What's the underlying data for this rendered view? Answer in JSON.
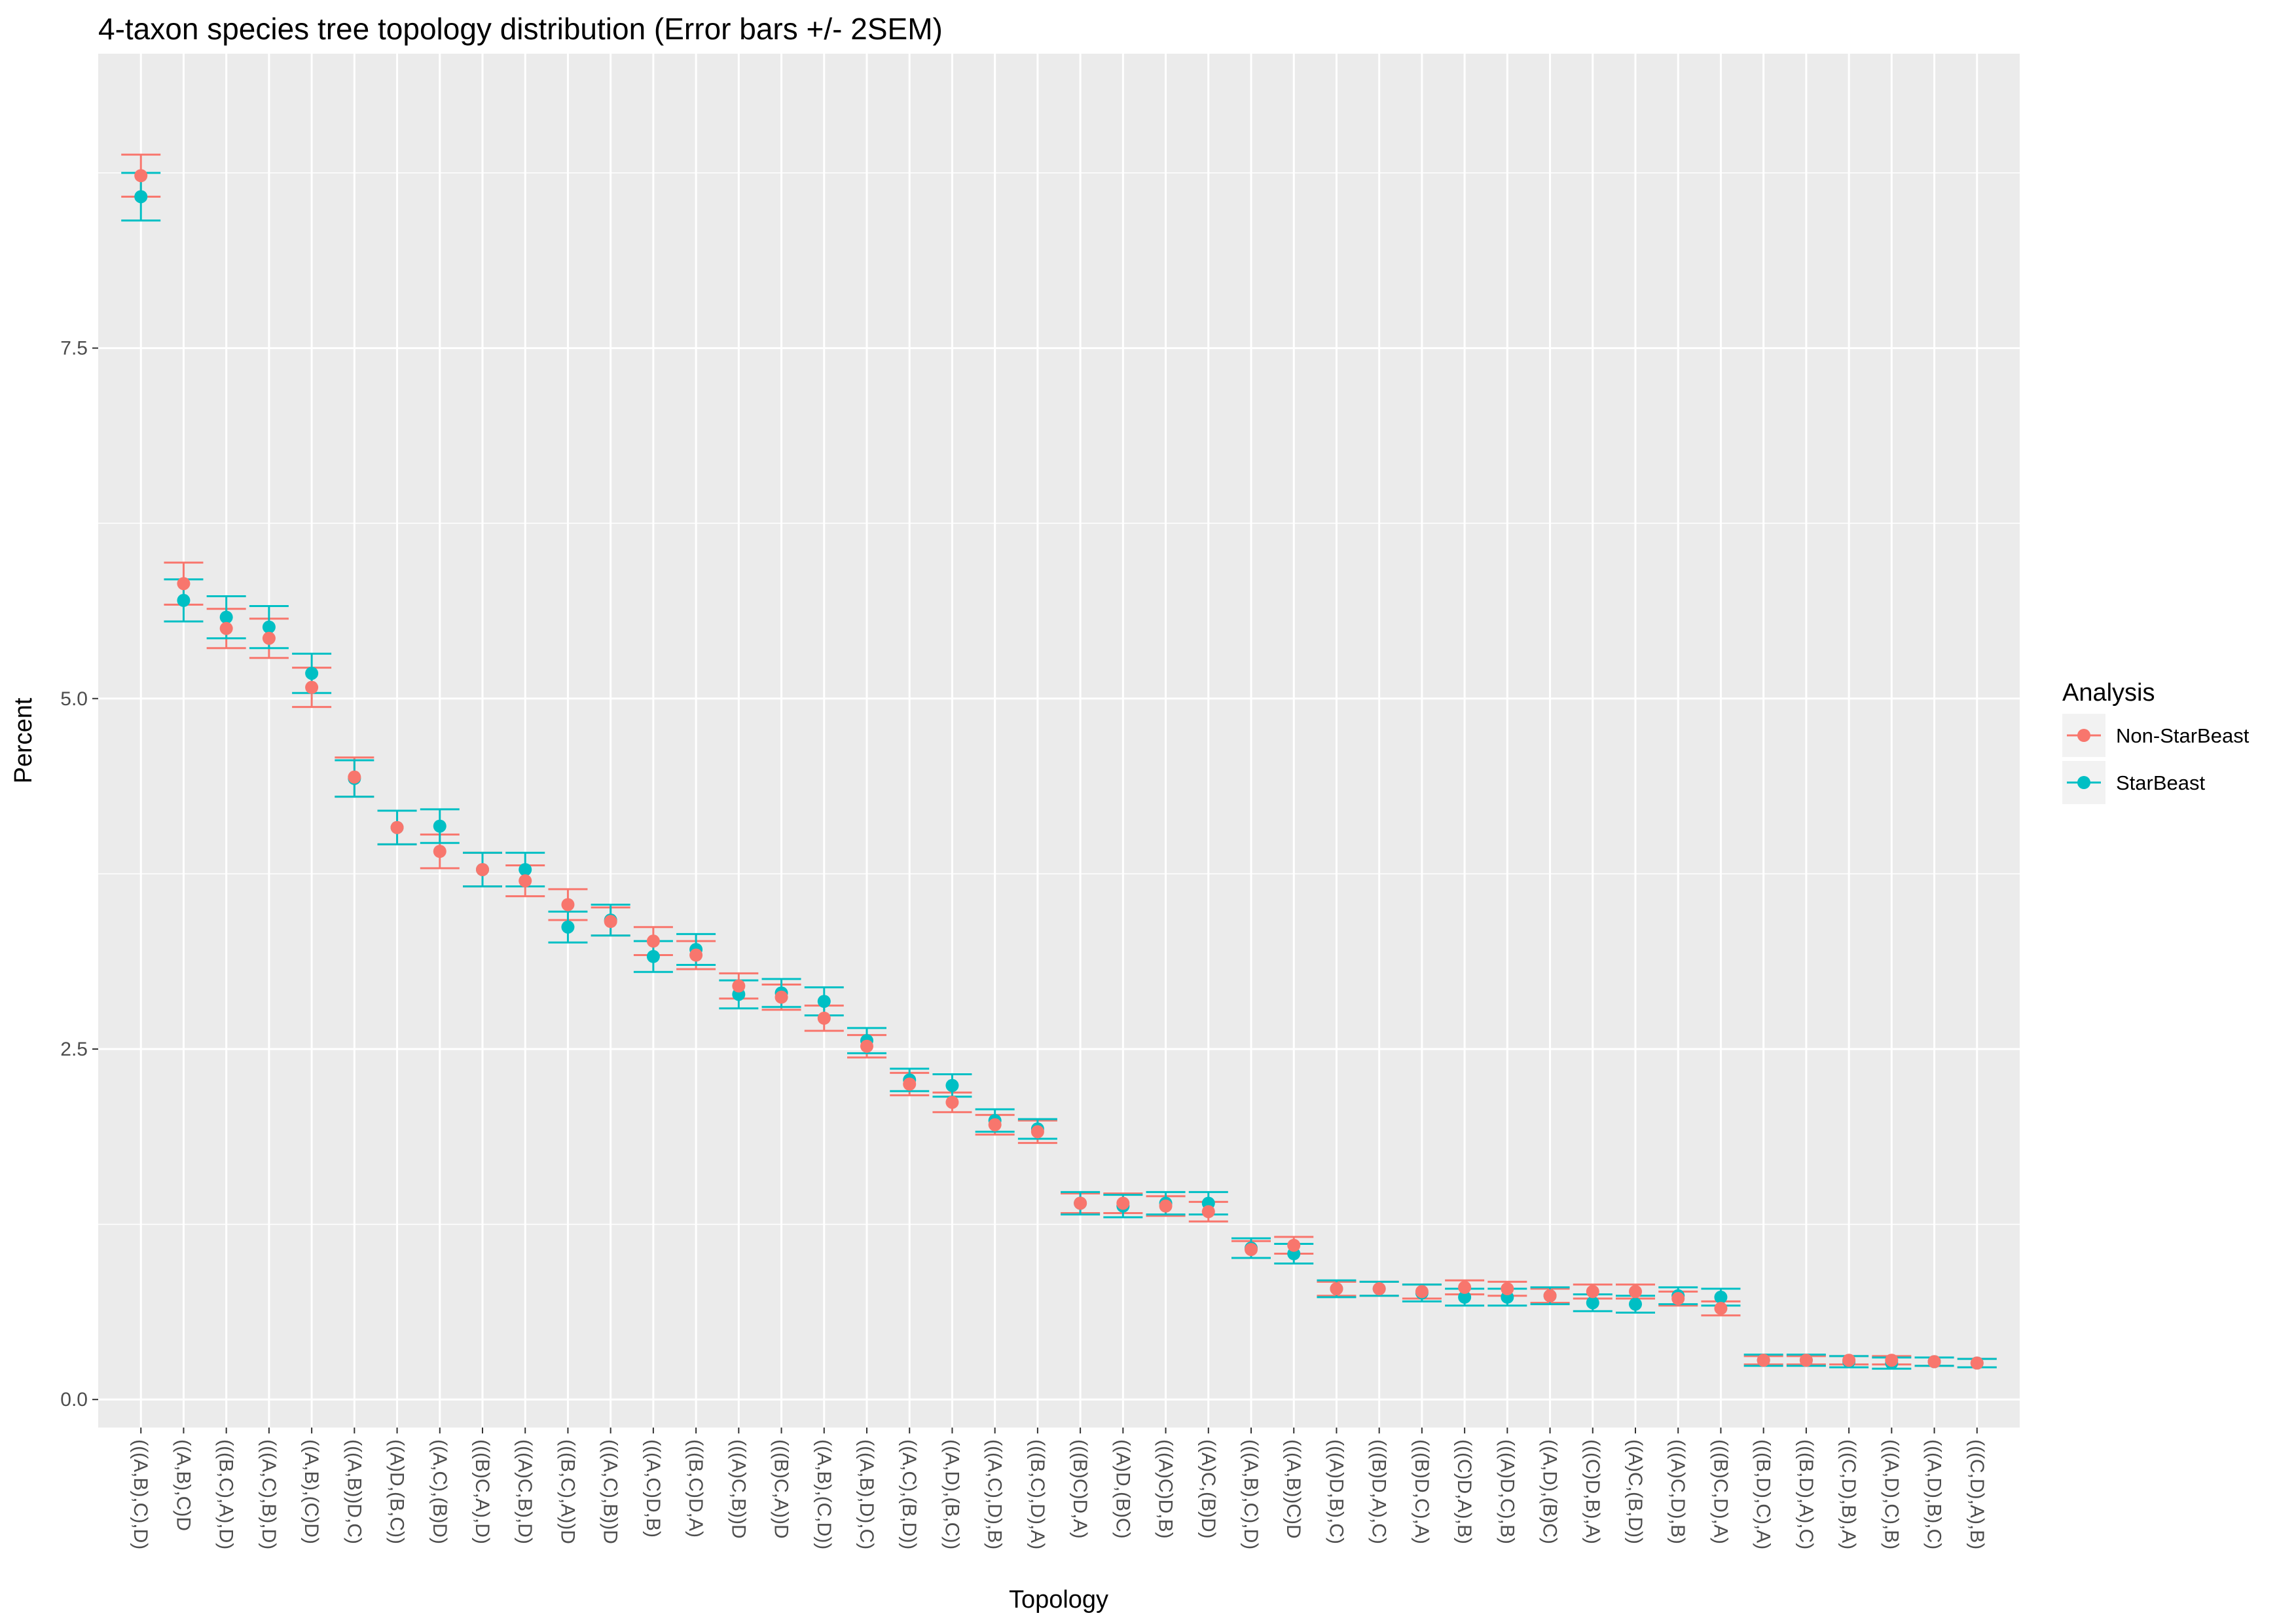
{
  "chart_data": {
    "type": "scatter",
    "title": "4-taxon species tree topology distribution (Error bars +/- 2SEM)",
    "xlabel": "Topology",
    "ylabel": "Percent",
    "ylim": [
      -0.2,
      9.6
    ],
    "yticks": [
      0.0,
      2.5,
      5.0,
      7.5
    ],
    "ytick_labels": [
      "0.0",
      "2.5",
      "5.0",
      "7.5"
    ],
    "grid": true,
    "legend_position": "right",
    "legend_title": "Analysis",
    "categories": [
      "(((A,B),C),D)",
      "((A,B),C)D",
      "(((B,C),A),D)",
      "(((A,C),B),D)",
      "((A,B),(C)D)",
      "(((A,B))D,C)",
      "((A)D,(B,C))",
      "((A,C),(B)D)",
      "(((B)C,A),D)",
      "(((A)C,B),D)",
      "(((B,C),A))D",
      "(((A,C),B))D",
      "(((A,C)D,B)",
      "(((B,C)D,A)",
      "(((A)C,B))D",
      "(((B)C,A))D",
      "((A,B),(C,D))",
      "(((A,B),D),C)",
      "((A,C),(B,D))",
      "((A,D),(B,C))",
      "(((A,C),D),B)",
      "(((B,C),D),A)",
      "(((B)C)D,A)",
      "((A)D,(B)C)",
      "(((A)C)D,B)",
      "((A)C,(B)D)",
      "(((A,B),C),D)",
      "(((A,B))C)D",
      "(((A)D,B),C)",
      "(((B)D,A),C)",
      "(((B)D,C),A)",
      "(((C)D,A),B)",
      "(((A)D,C),B)",
      "((A,D),(B)C)",
      "(((C)D,B),A)",
      "((A)C,(B,D))",
      "(((A)C,D),B)",
      "(((B)C,D),A)",
      "(((B,D),C),A)",
      "(((B,D),A),C)",
      "(((C,D),B),A)",
      "(((A,D),C),B)",
      "(((A,D),B),C)",
      "(((C,D),A),B)"
    ],
    "series": [
      {
        "name": "Non-StarBeast",
        "color": "#F8766D",
        "values": [
          8.73,
          5.82,
          5.5,
          5.43,
          5.08,
          4.44,
          4.08,
          3.91,
          3.78,
          3.7,
          3.53,
          3.41,
          3.27,
          3.17,
          2.95,
          2.87,
          2.72,
          2.52,
          2.25,
          2.12,
          1.96,
          1.91,
          1.4,
          1.4,
          1.38,
          1.34,
          1.07,
          1.1,
          0.79,
          0.79,
          0.77,
          0.8,
          0.79,
          0.74,
          0.77,
          0.77,
          0.72,
          0.65,
          0.28,
          0.28,
          0.28,
          0.28,
          0.27,
          0.26
        ],
        "err": [
          0.15,
          0.15,
          0.14,
          0.14,
          0.14,
          0.14,
          0.12,
          0.12,
          0.12,
          0.11,
          0.11,
          0.1,
          0.1,
          0.1,
          0.09,
          0.09,
          0.09,
          0.08,
          0.08,
          0.07,
          0.07,
          0.08,
          0.07,
          0.07,
          0.07,
          0.07,
          0.06,
          0.06,
          0.05,
          0.05,
          0.05,
          0.05,
          0.05,
          0.05,
          0.05,
          0.05,
          0.05,
          0.05,
          0.03,
          0.03,
          0.03,
          0.03,
          0.03,
          0.03
        ]
      },
      {
        "name": "StarBeast",
        "color": "#00BFC4",
        "values": [
          8.58,
          5.7,
          5.58,
          5.51,
          5.18,
          4.43,
          4.08,
          4.09,
          3.78,
          3.78,
          3.37,
          3.42,
          3.16,
          3.21,
          2.89,
          2.9,
          2.84,
          2.56,
          2.28,
          2.24,
          1.99,
          1.93,
          1.4,
          1.38,
          1.4,
          1.4,
          1.08,
          1.04,
          0.79,
          0.79,
          0.76,
          0.73,
          0.73,
          0.74,
          0.69,
          0.68,
          0.74,
          0.73,
          0.28,
          0.28,
          0.27,
          0.26,
          0.27,
          0.26
        ],
        "err": [
          0.17,
          0.15,
          0.15,
          0.15,
          0.14,
          0.13,
          0.12,
          0.12,
          0.12,
          0.12,
          0.11,
          0.11,
          0.11,
          0.11,
          0.1,
          0.1,
          0.1,
          0.09,
          0.08,
          0.08,
          0.08,
          0.07,
          0.08,
          0.08,
          0.08,
          0.08,
          0.07,
          0.07,
          0.06,
          0.05,
          0.06,
          0.06,
          0.06,
          0.06,
          0.06,
          0.06,
          0.06,
          0.06,
          0.04,
          0.04,
          0.04,
          0.04,
          0.03,
          0.03
        ]
      }
    ]
  }
}
